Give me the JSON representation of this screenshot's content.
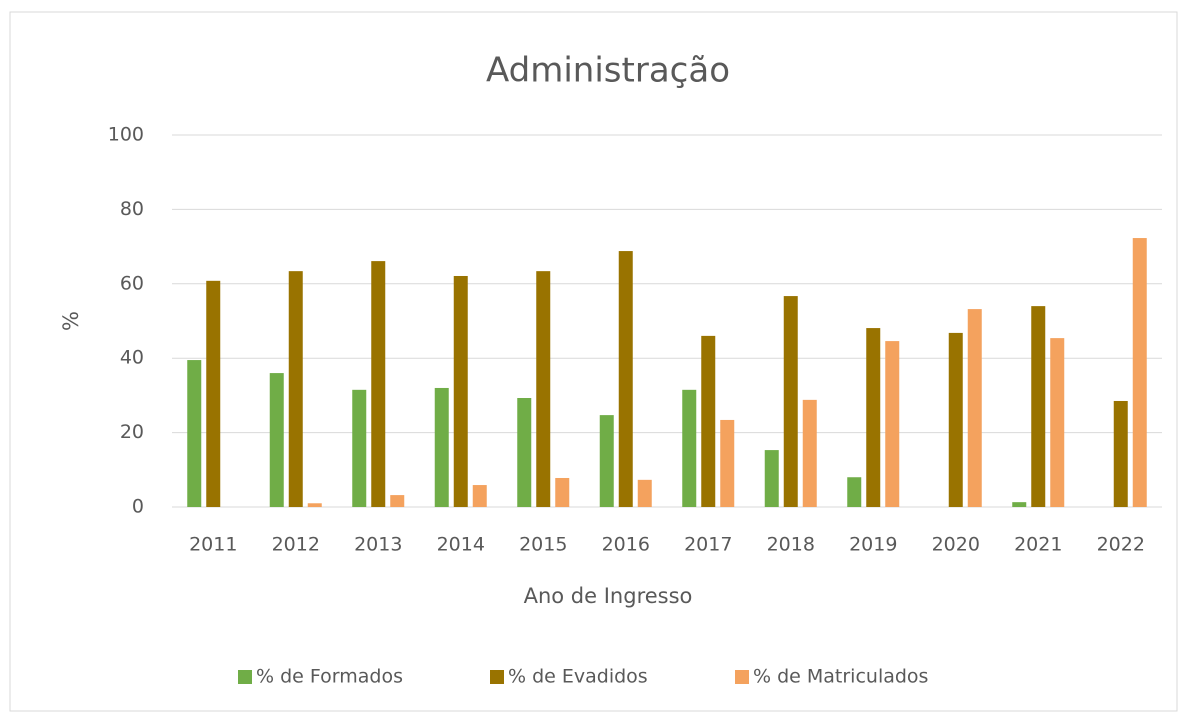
{
  "chart_data": {
    "type": "bar",
    "title": "Administração",
    "x_label": "Ano de Ingresso",
    "y_label": "%",
    "categories": [
      "2011",
      "2012",
      "2013",
      "2014",
      "2015",
      "2016",
      "2017",
      "2018",
      "2019",
      "2020",
      "2021",
      "2022"
    ],
    "series": [
      {
        "name": "% de Formados",
        "color": "#70ad47",
        "values": [
          39.5,
          36,
          31.5,
          32,
          29.3,
          24.7,
          31.5,
          15.3,
          8,
          0,
          1.3,
          0
        ]
      },
      {
        "name": "% de Evadidos",
        "color": "#997300",
        "values": [
          60.8,
          63.4,
          66.1,
          62.1,
          63.4,
          68.8,
          46,
          56.7,
          48.1,
          46.8,
          54,
          28.5
        ]
      },
      {
        "name": "% de Matriculados",
        "color": "#f4a25e",
        "values": [
          0,
          1,
          3.2,
          5.9,
          7.8,
          7.3,
          23.4,
          28.8,
          44.6,
          53.2,
          45.4,
          72.3
        ]
      }
    ],
    "ylim": [
      0,
      100
    ],
    "yticks": [
      0,
      20,
      40,
      60,
      80,
      100
    ],
    "grid": true,
    "legend": "bottom"
  }
}
